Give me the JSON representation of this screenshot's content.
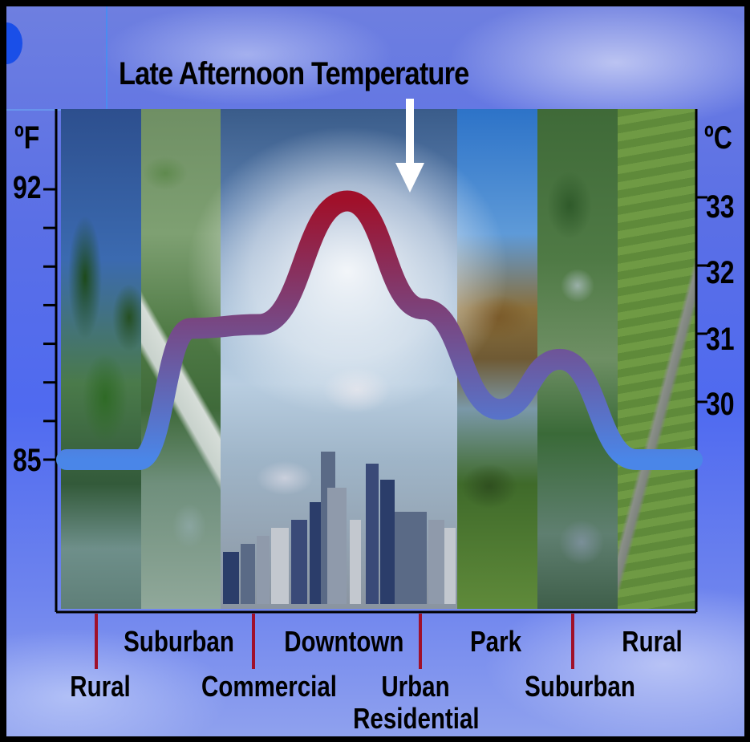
{
  "title": "Late Afternoon Temperature",
  "axis_left": {
    "unit": "ºF",
    "labels": [
      "92",
      "85"
    ]
  },
  "axis_right": {
    "unit": "ºC",
    "labels": [
      "33",
      "32",
      "31",
      "30"
    ]
  },
  "zones": [
    {
      "label": "Rural"
    },
    {
      "label": "Suburban"
    },
    {
      "label": "Commercial"
    },
    {
      "label": "Downtown"
    },
    {
      "label": "Urban\nResidential"
    },
    {
      "label": "Park"
    },
    {
      "label": "Suburban"
    },
    {
      "label": "Rural"
    }
  ],
  "curve": {
    "unit": "ºF",
    "points": [
      {
        "zone": "Rural",
        "value": 85.0
      },
      {
        "zone": "Suburban",
        "value": 88.4
      },
      {
        "zone": "Commercial",
        "value": 88.5
      },
      {
        "zone": "Downtown",
        "value": 91.7
      },
      {
        "zone": "Urban Residential",
        "value": 88.9
      },
      {
        "zone": "Park",
        "value": 86.3
      },
      {
        "zone": "Suburban",
        "value": 87.6
      },
      {
        "zone": "Rural",
        "value": 85.0
      }
    ],
    "colors": {
      "cool": "#4a86e8",
      "warm": "#a0102a"
    }
  },
  "arrow": {
    "target_zone": "Downtown"
  }
}
